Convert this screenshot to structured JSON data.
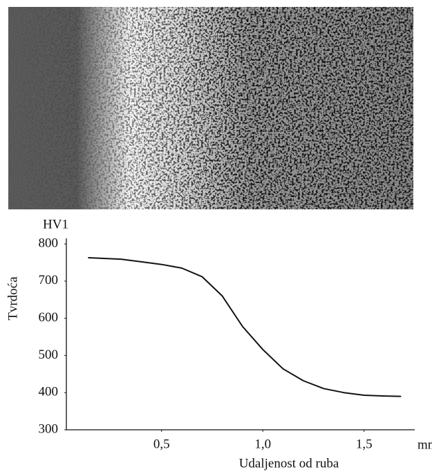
{
  "chart_data": {
    "type": "line",
    "y_unit": "HV1",
    "y_label": "Tvrdoća",
    "x_unit": "mm",
    "x_label": "Udaljenost od ruba",
    "x": [
      0.14,
      0.3,
      0.4,
      0.5,
      0.6,
      0.7,
      0.8,
      0.9,
      1.0,
      1.1,
      1.2,
      1.3,
      1.4,
      1.5,
      1.6,
      1.68
    ],
    "series": [
      {
        "color": "#111111",
        "values": [
          763,
          759,
          752,
          745,
          735,
          712,
          660,
          578,
          516,
          464,
          432,
          411,
          400,
          393,
          391,
          390
        ]
      }
    ],
    "xlim": [
      0.03,
      1.75
    ],
    "xticks": [
      {
        "value": 0.5,
        "label": "0,5"
      },
      {
        "value": 1.0,
        "label": "1,0"
      },
      {
        "value": 1.5,
        "label": "1,5"
      }
    ],
    "ylim": [
      300,
      815
    ],
    "yticks": [
      300,
      400,
      500,
      600,
      700,
      800
    ],
    "grid": false
  }
}
